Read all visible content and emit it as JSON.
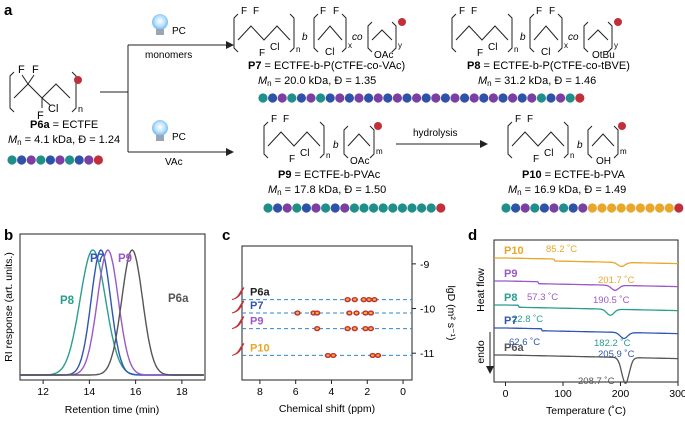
{
  "panels": {
    "a": "a",
    "b": "b",
    "c": "c",
    "d": "d"
  },
  "scheme": {
    "p6a": {
      "code": "P6a",
      "name": "= ECTFE",
      "mn_label": "M",
      "mn_sub": "n",
      "mn_value": " = 4.1 kDa, ",
      "dispersity": "Đ = 1.24"
    },
    "p7": {
      "code": "P7",
      "name": " = ECTFE-b-P(CTFE-co-VAc)",
      "mn_label": "M",
      "mn_sub": "n",
      "mn_value": " = 20.0 kDa, ",
      "dispersity": "Đ = 1.35"
    },
    "p8": {
      "code": "P8",
      "name": " = ECTFE-b-P(CTFE-co-tBVE)",
      "mn_label": "M",
      "mn_sub": "n",
      "mn_value": " = 31.2 kDa, ",
      "dispersity": "Đ = 1.46"
    },
    "p9": {
      "code": "P9",
      "name": " = ECTFE-b-PVAc",
      "mn_label": "M",
      "mn_sub": "n",
      "mn_value": " = 17.8 kDa, ",
      "dispersity": "Đ = 1.50"
    },
    "p10": {
      "code": "P10",
      "name": " = ECTFE-b-PVA",
      "mn_label": "M",
      "mn_sub": "n",
      "mn_value": " = 16.9 kDa, ",
      "dispersity": "Đ = 1.49"
    },
    "arrow_top_label": "monomers",
    "arrow_bottom_label": "VAc",
    "pc": "PC",
    "hydrolysis": "hydrolysis",
    "atoms": {
      "F": "F",
      "Cl": "Cl",
      "OAc": "OAc",
      "OH": "OH",
      "OtBu": "OtBu",
      "n": "n",
      "m": "m",
      "b": "b",
      "co": "co",
      "x": "x",
      "y": "y"
    }
  },
  "bead_colors": {
    "teal": "#1f8f8a",
    "blue": "#2d52a8",
    "purple": "#7b3fa3",
    "red": "#c0303a",
    "orange": "#e8a72a"
  },
  "chart_data": [
    {
      "type": "line",
      "panel": "b",
      "xlabel": "Retention time (min)",
      "ylabel": "RI response (art. units.)",
      "xlim": [
        11,
        19
      ],
      "xticks": [
        12,
        14,
        16,
        18
      ],
      "series": [
        {
          "name": "P8",
          "color": "#2a9d8f",
          "peak_x": 14.15,
          "width": 0.55
        },
        {
          "name": "P7",
          "color": "#2e57b3",
          "peak_x": 14.5,
          "width": 0.42
        },
        {
          "name": "P9",
          "color": "#9b59c6",
          "peak_x": 14.8,
          "width": 0.45
        },
        {
          "name": "P6a",
          "color": "#555555",
          "peak_x": 15.85,
          "width": 0.45
        }
      ]
    },
    {
      "type": "scatter",
      "panel": "c",
      "xlabel": "Chemical shift (ppm)",
      "ylabel": "lgD (m² s⁻¹)",
      "xlim": [
        9,
        -0.5
      ],
      "xticks": [
        8,
        6,
        4,
        2,
        0
      ],
      "ylim": [
        -8.6,
        -11.6
      ],
      "yticks": [
        -9,
        -10,
        -11
      ],
      "series": [
        {
          "name": "P6a",
          "color": "#222222",
          "lgD": -9.8,
          "peaks": [
            3.1,
            2.7,
            2.2,
            1.9,
            1.6
          ]
        },
        {
          "name": "P7",
          "color": "#2e57b3",
          "lgD": -10.1,
          "peaks": [
            5.9,
            5.0,
            4.8,
            3.0,
            2.6,
            2.1,
            1.8
          ]
        },
        {
          "name": "P9",
          "color": "#9b59c6",
          "lgD": -10.45,
          "peaks": [
            4.8,
            3.1,
            2.7,
            2.1,
            1.8
          ]
        },
        {
          "name": "P10",
          "color": "#e8a72a",
          "lgD": -11.05,
          "peaks": [
            4.2,
            3.9,
            1.7,
            1.4
          ]
        }
      ]
    },
    {
      "type": "line",
      "panel": "d",
      "xlabel": "Temperature (˚C)",
      "ylabel": "Heat flow",
      "ylabel_dir": "endo",
      "xlim": [
        -20,
        300
      ],
      "xticks": [
        0,
        100,
        200,
        300
      ],
      "series": [
        {
          "name": "P10",
          "color": "#e8a72a",
          "annotations": [
            "85.2 ˚C",
            "201.7 ˚C"
          ]
        },
        {
          "name": "P9",
          "color": "#9b59c6",
          "annotations": [
            "57.3 ˚C",
            "190.5 ˚C"
          ]
        },
        {
          "name": "P8",
          "color": "#2a9d8f",
          "annotations": [
            "22.8 ˚C",
            "182.2 ˚C"
          ]
        },
        {
          "name": "P7",
          "color": "#2e57b3",
          "annotations": [
            "62.6 ˚C",
            "205.9 ˚C"
          ]
        },
        {
          "name": "P6a",
          "color": "#555555",
          "annotations": [
            "208.7 ˚C"
          ]
        }
      ]
    }
  ]
}
